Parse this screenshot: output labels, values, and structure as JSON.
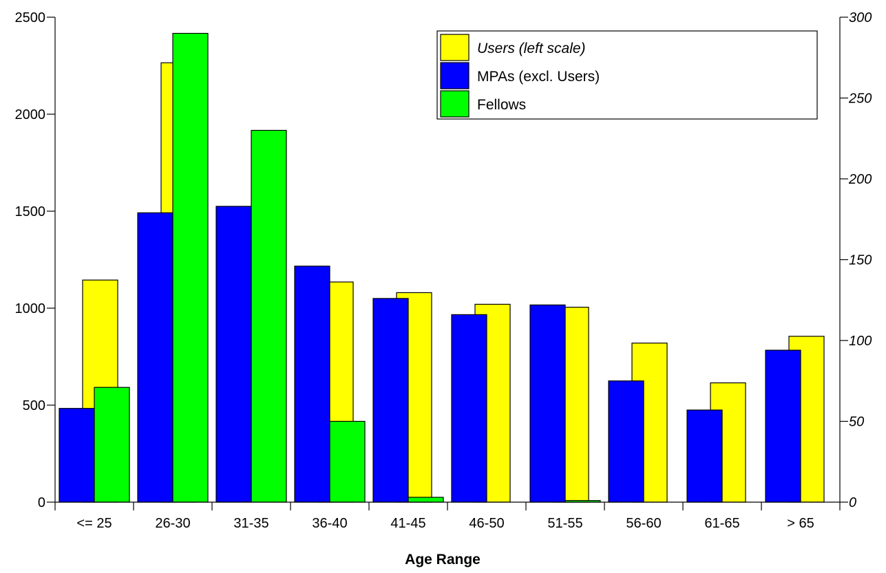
{
  "chart_data": {
    "type": "bar",
    "categories": [
      "<= 25",
      "26-30",
      "31-35",
      "36-40",
      "41-45",
      "46-50",
      "51-55",
      "56-60",
      "61-65",
      "> 65"
    ],
    "series": [
      {
        "name": "Users (left scale)",
        "axis": "left",
        "color": "#ffff00",
        "italic": true,
        "values": [
          1145,
          2265,
          0,
          1135,
          1080,
          1020,
          1005,
          820,
          615,
          855
        ]
      },
      {
        "name": "MPAs (excl. Users)",
        "axis": "right",
        "color": "#0000ff",
        "italic": false,
        "values": [
          58,
          179,
          183,
          146,
          126,
          116,
          122,
          75,
          57,
          94
        ]
      },
      {
        "name": "Fellows",
        "axis": "right",
        "color": "#00ff00",
        "italic": false,
        "values": [
          71,
          290,
          230,
          50,
          3,
          0,
          1,
          0,
          0,
          0
        ]
      }
    ],
    "xlabel": "Age Range",
    "ylabel_left": "",
    "ylabel_right": "",
    "ylim_left": [
      0,
      2500
    ],
    "ylim_right": [
      0,
      300
    ],
    "yticks_left": [
      "0",
      "500",
      "1000",
      "1500",
      "2000",
      "2500"
    ],
    "yticks_right": [
      "0",
      "50",
      "100",
      "150",
      "200",
      "250",
      "300"
    ],
    "grid": false,
    "legend_position": "top-right"
  }
}
